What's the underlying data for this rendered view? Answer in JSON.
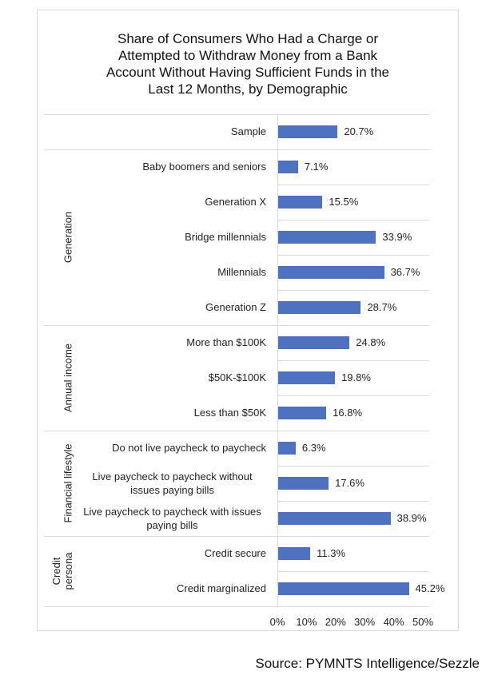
{
  "chart_data": {
    "type": "bar",
    "orientation": "horizontal",
    "title": "Share of Consumers Who Had a Charge or Attempted to Withdraw Money from a Bank Account Without Having Sufficient Funds in the Last 12 Months, by Demographic",
    "title_lines": [
      "Share of Consumers Who Had a Charge or",
      "Attempted to Withdraw Money from a Bank",
      "Account Without Having Sufficient Funds in the",
      "Last 12 Months, by Demographic"
    ],
    "xlim": [
      0,
      50
    ],
    "x_ticks": [
      "0%",
      "10%",
      "20%",
      "30%",
      "40%",
      "50%"
    ],
    "bar_color": "#4f72c0",
    "groups": [
      {
        "label": "",
        "categories": [
          {
            "label": "Sample",
            "value": 20.7,
            "value_label": "20.7%"
          }
        ]
      },
      {
        "label": "Generation",
        "categories": [
          {
            "label": "Baby boomers and seniors",
            "value": 7.1,
            "value_label": "7.1%"
          },
          {
            "label": "Generation X",
            "value": 15.5,
            "value_label": "15.5%"
          },
          {
            "label": "Bridge millennials",
            "value": 33.9,
            "value_label": "33.9%"
          },
          {
            "label": "Millennials",
            "value": 36.7,
            "value_label": "36.7%"
          },
          {
            "label": "Generation Z",
            "value": 28.7,
            "value_label": "28.7%"
          }
        ]
      },
      {
        "label": "Annual income",
        "categories": [
          {
            "label": "More than $100K",
            "value": 24.8,
            "value_label": "24.8%"
          },
          {
            "label": "$50K-$100K",
            "value": 19.8,
            "value_label": "19.8%"
          },
          {
            "label": "Less than $50K",
            "value": 16.8,
            "value_label": "16.8%"
          }
        ]
      },
      {
        "label": "Financial lifestyle",
        "categories": [
          {
            "label": "Do not live paycheck to paycheck",
            "value": 6.3,
            "value_label": "6.3%"
          },
          {
            "label": "Live paycheck to paycheck without issues paying bills",
            "value": 17.6,
            "value_label": "17.6%"
          },
          {
            "label": "Live paycheck to paycheck with issues paying bills",
            "value": 38.9,
            "value_label": "38.9%"
          }
        ]
      },
      {
        "label": "Credit persona",
        "categories": [
          {
            "label": "Credit secure",
            "value": 11.3,
            "value_label": "11.3%"
          },
          {
            "label": "Credit marginalized",
            "value": 45.2,
            "value_label": "45.2%"
          }
        ]
      }
    ]
  },
  "source": "Source: PYMNTS Intelligence/Sezzle"
}
